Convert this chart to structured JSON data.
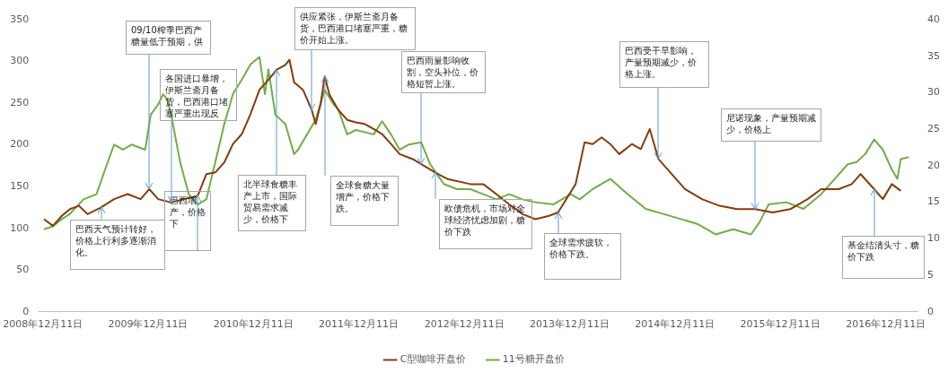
{
  "chart_data": {
    "type": "line",
    "xlim": [
      "2008-11-27",
      "2017-03-31"
    ],
    "xticks": [
      {
        "value": "2008-12-11",
        "label": "2008年12月11日"
      },
      {
        "value": "2009-12-11",
        "label": "2009年12月11日"
      },
      {
        "value": "2010-12-11",
        "label": "2010年12月11日"
      },
      {
        "value": "2011-12-11",
        "label": "2011年12月11日"
      },
      {
        "value": "2012-12-11",
        "label": "2012年12月11日"
      },
      {
        "value": "2013-12-11",
        "label": "2013年12月11日"
      },
      {
        "value": "2014-12-11",
        "label": "2014年12月11日"
      },
      {
        "value": "2015-12-11",
        "label": "2015年12月11日"
      },
      {
        "value": "2016-12-11",
        "label": "2016年12月11日"
      }
    ],
    "ylim": [
      0,
      350
    ],
    "yticks": [
      0,
      50,
      100,
      150,
      200,
      250,
      300,
      350
    ],
    "y2lim": [
      0,
      40
    ],
    "y2ticks": [
      0,
      5,
      10,
      15,
      20,
      25,
      30,
      35,
      40
    ],
    "legend": "bottom",
    "marker": "none",
    "line_style": "solid",
    "series": [
      {
        "name": "C型咖啡开盘价",
        "color": "#843c0c",
        "x": [
          "2008-12-15",
          "2009-01-15",
          "2009-02-15",
          "2009-03-15",
          "2009-04-15",
          "2009-05-15",
          "2009-07-01",
          "2009-08-15",
          "2009-10-01",
          "2009-11-15",
          "2009-12-15",
          "2010-01-15",
          "2010-03-01",
          "2010-04-15",
          "2010-06-01",
          "2010-07-01",
          "2010-08-01",
          "2010-09-01",
          "2010-10-01",
          "2010-11-01",
          "2010-12-01",
          "2011-01-01",
          "2011-02-01",
          "2011-03-01",
          "2011-04-01",
          "2011-04-15",
          "2011-05-01",
          "2011-06-01",
          "2011-07-01",
          "2011-07-15",
          "2011-08-01",
          "2011-08-15",
          "2011-09-01",
          "2011-10-01",
          "2011-11-01",
          "2011-12-01",
          "2012-01-01",
          "2012-02-01",
          "2012-03-01",
          "2012-04-01",
          "2012-05-01",
          "2012-06-15",
          "2012-07-15",
          "2012-09-01",
          "2012-10-15",
          "2013-01-01",
          "2013-02-15",
          "2013-04-01",
          "2013-05-15",
          "2013-07-01",
          "2013-08-15",
          "2013-10-01",
          "2013-11-01",
          "2014-01-01",
          "2014-02-01",
          "2014-03-01",
          "2014-04-01",
          "2014-05-01",
          "2014-06-01",
          "2014-07-15",
          "2014-08-15",
          "2014-09-15",
          "2014-10-15",
          "2014-11-15",
          "2015-01-15",
          "2015-03-15",
          "2015-05-15",
          "2015-07-15",
          "2015-09-15",
          "2015-11-15",
          "2016-01-15",
          "2016-03-15",
          "2016-05-01",
          "2016-07-01",
          "2016-08-15",
          "2016-09-15",
          "2016-11-01",
          "2016-12-01",
          "2017-01-01",
          "2017-02-01"
        ],
        "values": [
          111,
          103,
          115,
          123,
          127,
          117,
          125,
          135,
          141,
          135,
          147,
          135,
          131,
          135,
          139,
          165,
          167,
          179,
          201,
          213,
          237,
          266,
          278,
          290,
          296,
          302,
          275,
          266,
          242,
          225,
          249,
          282,
          260,
          242,
          230,
          227,
          225,
          219,
          213,
          201,
          189,
          183,
          177,
          167,
          159,
          153,
          153,
          141,
          129,
          117,
          111,
          115,
          119,
          153,
          203,
          201,
          209,
          201,
          189,
          201,
          195,
          219,
          183,
          171,
          147,
          135,
          127,
          123,
          123,
          119,
          123,
          135,
          147,
          147,
          153,
          165,
          147,
          135,
          153,
          145
        ]
      },
      {
        "name": "11号糖开盘价",
        "color": "#70ad47",
        "axis": "y2",
        "x": [
          "2008-12-15",
          "2009-01-15",
          "2009-02-15",
          "2009-03-15",
          "2009-05-01",
          "2009-06-15",
          "2009-07-15",
          "2009-08-15",
          "2009-09-15",
          "2009-10-15",
          "2009-12-01",
          "2009-12-20",
          "2010-01-15",
          "2010-02-01",
          "2010-02-15",
          "2010-03-01",
          "2010-04-01",
          "2010-05-01",
          "2010-06-01",
          "2010-07-01",
          "2010-08-01",
          "2010-09-01",
          "2010-10-01",
          "2010-11-01",
          "2010-12-01",
          "2011-01-01",
          "2011-01-20",
          "2011-02-01",
          "2011-02-25",
          "2011-04-01",
          "2011-05-01",
          "2011-05-15",
          "2011-06-15",
          "2011-07-15",
          "2011-08-15",
          "2011-09-15",
          "2011-10-01",
          "2011-11-01",
          "2011-12-01",
          "2012-02-01",
          "2012-03-01",
          "2012-04-01",
          "2012-05-01",
          "2012-06-01",
          "2012-07-15",
          "2012-08-15",
          "2012-10-01",
          "2012-11-15",
          "2013-01-01",
          "2013-02-15",
          "2013-04-01",
          "2013-05-15",
          "2013-07-01",
          "2013-08-15",
          "2013-10-15",
          "2013-12-15",
          "2014-01-15",
          "2014-03-01",
          "2014-05-01",
          "2014-07-01",
          "2014-09-01",
          "2014-11-01",
          "2015-01-01",
          "2015-03-01",
          "2015-05-01",
          "2015-07-01",
          "2015-09-01",
          "2015-10-01",
          "2015-11-01",
          "2016-01-01",
          "2016-03-01",
          "2016-05-01",
          "2016-07-01",
          "2016-08-01",
          "2016-09-01",
          "2016-10-01",
          "2016-11-01",
          "2016-12-01",
          "2017-01-01",
          "2017-01-20",
          "2017-02-01",
          "2017-03-01"
        ],
        "values": [
          11.3,
          11.7,
          12.7,
          13.4,
          15.4,
          16.1,
          19.5,
          22.9,
          22.2,
          22.9,
          22.2,
          27.0,
          28.4,
          29.8,
          29.1,
          27.0,
          20.5,
          16.1,
          14.7,
          15.4,
          20.5,
          25.7,
          29.8,
          31.8,
          33.9,
          34.9,
          29.8,
          33.2,
          27.0,
          25.7,
          21.6,
          22.2,
          24.3,
          26.3,
          30.4,
          28.4,
          27.7,
          24.3,
          24.9,
          24.3,
          26.1,
          24.3,
          22.2,
          22.9,
          23.2,
          20.2,
          17.5,
          16.8,
          16.8,
          16.1,
          15.4,
          16.1,
          15.4,
          15.0,
          14.7,
          16.1,
          15.4,
          16.8,
          18.2,
          16.1,
          14.1,
          13.4,
          12.7,
          12.0,
          10.6,
          11.3,
          10.6,
          12.3,
          14.7,
          15.0,
          14.1,
          16.1,
          18.8,
          20.2,
          20.5,
          21.6,
          23.6,
          22.2,
          19.5,
          18.2,
          20.9,
          21.2
        ]
      }
    ],
    "annotations": [
      {
        "text": "09/10榨季巴西产糖量低于预期，供",
        "x": "2009-12-15",
        "y": 147
      },
      {
        "text": "各国进口暴增，伊斯兰斋月备货，巴西港口堵塞严重出现反",
        "x": "2010-03-01",
        "y": 131
      },
      {
        "text": "供应紧张，伊斯兰斋月备货，巴西港口堵塞严重，糖价开始上涨。",
        "x": "2011-07-01",
        "y": 242
      },
      {
        "text": "巴西天气预计转好，价格上行利多逐渐消化。",
        "x": "2009-07-01",
        "y": 125
      },
      {
        "text": "巴西增产，价格下",
        "x": "2010-06-01",
        "y": 139
      },
      {
        "text": "北半球食糖丰产上市，国际贸易需求减少，价格下",
        "x": "2011-03-01",
        "y": 290
      },
      {
        "text": "全球食糖大量增产，价格下跌。",
        "x": "2011-08-15",
        "y": 282
      },
      {
        "text": "巴西雨量影响收割，空头补位，价格短暂上涨。",
        "x": "2012-07-15",
        "y": 177
      },
      {
        "text": "欧债危机，市场对全球经济忧虑加剧，糖价下跌",
        "x": "2012-09-01",
        "y": 167
      },
      {
        "text": "全球需求疲软，价格下跌。",
        "x": "2013-11-01",
        "y": 119
      },
      {
        "text": "巴西受干旱影响，产量预期减少，价格上涨。",
        "x": "2014-10-15",
        "y": 183
      },
      {
        "text": "尼诺现象，产量预期减少，价格上",
        "x": "2015-09-15",
        "y": 123
      },
      {
        "text": "基金结清头寸，糖价下跌",
        "x": "2016-11-01",
        "y": 147
      }
    ]
  }
}
